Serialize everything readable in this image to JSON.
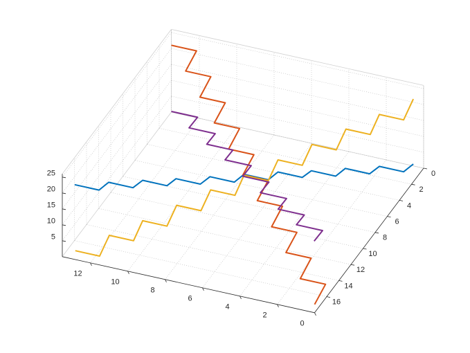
{
  "chart_data": {
    "type": "line",
    "xlim": [
      0,
      13.5
    ],
    "ylim": [
      0,
      18
    ],
    "zlim": [
      0,
      26
    ],
    "xticks": [
      0,
      2,
      4,
      6,
      8,
      10,
      12
    ],
    "yticks": [
      0,
      2,
      4,
      6,
      8,
      10,
      12,
      14,
      16
    ],
    "zticks": [
      5,
      10,
      15,
      20,
      25
    ],
    "grid": true,
    "series": [
      {
        "color": "#0072bd",
        "x": [
          13,
          11.7,
          11.7,
          10.4,
          10.4,
          9.1,
          9.1,
          7.8,
          7.8,
          6.5,
          6.5,
          5.2,
          5.2,
          3.9,
          3.9,
          2.6,
          2.6,
          1.3,
          1.3,
          0,
          0
        ],
        "y": [
          17.5,
          17.5,
          15.9,
          15.9,
          14.3,
          14.3,
          12.8,
          12.8,
          11.2,
          11.2,
          9.6,
          9.6,
          8,
          8,
          6.5,
          6.5,
          4.9,
          4.9,
          3.3,
          3.3,
          1.7
        ],
        "z": [
          22,
          22,
          20.4,
          20.4,
          18.7,
          18.7,
          17.1,
          17.1,
          15.4,
          15.4,
          13.8,
          13.8,
          12.2,
          12.2,
          10.5,
          10.5,
          8.9,
          8.9,
          7.2,
          7.2,
          5.6
        ]
      },
      {
        "color": "#d95319",
        "x": [
          13.5,
          12.15,
          12.15,
          10.8,
          10.8,
          9.45,
          9.45,
          8.1,
          8.1,
          6.75,
          6.75,
          5.4,
          5.4,
          4.05,
          4.05,
          2.7,
          2.7,
          1.35,
          1.35,
          0,
          0
        ],
        "y": [
          0,
          0,
          1.8,
          1.8,
          3.6,
          3.6,
          5.4,
          5.4,
          7.2,
          7.2,
          9,
          9,
          10.8,
          10.8,
          12.6,
          12.6,
          14.4,
          14.4,
          16.2,
          16.2,
          18
        ],
        "z": [
          21,
          21,
          19.2,
          19.2,
          17.3,
          17.3,
          15.5,
          15.5,
          13.6,
          13.6,
          11.8,
          11.8,
          10,
          10,
          8.1,
          8.1,
          6.3,
          6.3,
          4.4,
          4.4,
          2.6
        ]
      },
      {
        "color": "#edb120",
        "x": [
          13,
          11.7,
          11.7,
          10.4,
          10.4,
          9.1,
          9.1,
          7.8,
          7.8,
          6.5,
          6.5,
          5.2,
          5.2,
          3.9,
          3.9,
          2.6,
          2.6,
          1.3,
          1.3,
          0,
          0
        ],
        "y": [
          17.4,
          17.4,
          15.8,
          15.8,
          14.3,
          14.3,
          12.7,
          12.7,
          11.1,
          11.1,
          9.6,
          9.6,
          8,
          8,
          6.4,
          6.4,
          4.8,
          4.8,
          3.3,
          3.3,
          1.7
        ],
        "z": [
          1,
          1,
          3.5,
          3.5,
          6,
          6,
          8.5,
          8.5,
          11,
          11,
          13.5,
          13.5,
          16,
          16,
          18.5,
          18.5,
          21,
          21,
          23.5,
          23.5,
          26
        ]
      },
      {
        "color": "#7e2f8e",
        "x": [
          12.2,
          10.8,
          10.8,
          9.4,
          9.4,
          8,
          8,
          6.6,
          6.6,
          5.2,
          5.2,
          3.8,
          3.8,
          2.4,
          2.4,
          1,
          1
        ],
        "y": [
          4,
          4,
          5.4,
          5.4,
          6.8,
          6.8,
          8.1,
          8.1,
          9.5,
          9.5,
          10.9,
          10.9,
          12.3,
          12.3,
          13.6,
          13.6,
          15
        ],
        "z": [
          12,
          12,
          12.2,
          12.2,
          12.4,
          12.4,
          12.6,
          12.6,
          12.8,
          12.8,
          13,
          13,
          13.2,
          13.2,
          13.4,
          13.4,
          13.6
        ]
      }
    ]
  }
}
